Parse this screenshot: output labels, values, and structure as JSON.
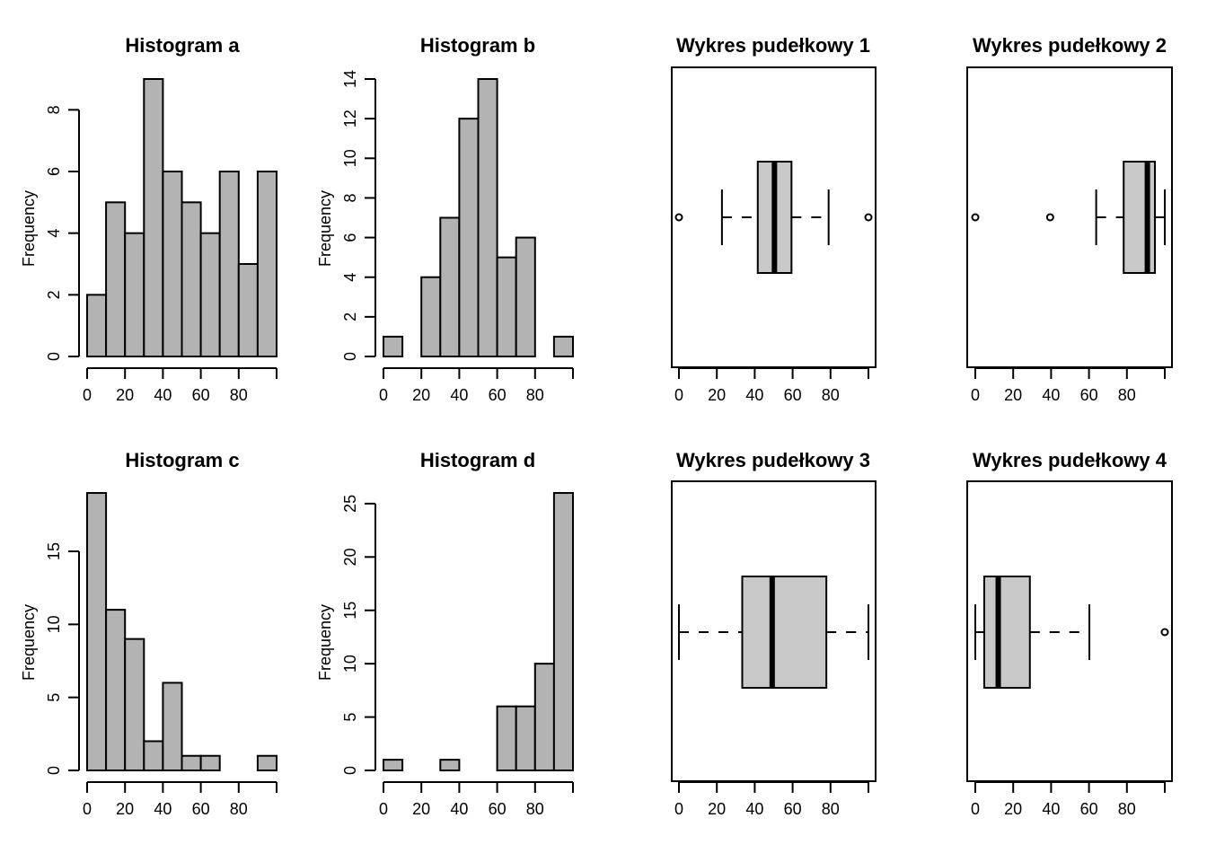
{
  "chart_data": [
    {
      "type": "bar",
      "subtype": "histogram",
      "title": "Histogram a",
      "xlabel": "",
      "ylabel": "Frequency",
      "bin_edges": [
        0,
        10,
        20,
        30,
        40,
        50,
        60,
        70,
        80,
        90,
        100
      ],
      "values": [
        2,
        5,
        4,
        9,
        6,
        5,
        4,
        6,
        3,
        6
      ],
      "xticks": [
        0,
        20,
        40,
        60,
        80,
        100
      ],
      "xtick_labels": [
        "0",
        "20",
        "40",
        "60",
        "80",
        ""
      ],
      "yticks": [
        0,
        2,
        4,
        6,
        8
      ],
      "ytick_labels": [
        "0",
        "2",
        "4",
        "6",
        "8"
      ],
      "xlim": [
        0,
        100
      ],
      "ylim": [
        0,
        9
      ],
      "bar_color": "#B3B3B3"
    },
    {
      "type": "bar",
      "subtype": "histogram",
      "title": "Histogram b",
      "xlabel": "",
      "ylabel": "Frequency",
      "bin_edges": [
        0,
        10,
        20,
        30,
        40,
        50,
        60,
        70,
        80,
        90,
        100
      ],
      "values": [
        1,
        0,
        4,
        7,
        12,
        14,
        5,
        6,
        0,
        1
      ],
      "xticks": [
        0,
        20,
        40,
        60,
        80,
        100
      ],
      "xtick_labels": [
        "0",
        "20",
        "40",
        "60",
        "80",
        ""
      ],
      "yticks": [
        0,
        2,
        4,
        6,
        8,
        10,
        12,
        14
      ],
      "ytick_labels": [
        "0",
        "2",
        "4",
        "6",
        "8",
        "10",
        "12",
        "14"
      ],
      "xlim": [
        0,
        100
      ],
      "ylim": [
        0,
        14
      ],
      "bar_color": "#B3B3B3"
    },
    {
      "type": "boxplot",
      "orientation": "horizontal",
      "title": "Wykres pudełkowy 1",
      "whisker_low": 22.7,
      "q1": 41.6,
      "median": 50.4,
      "q3": 59.4,
      "whisker_high": 79,
      "outliers": [
        0,
        100
      ],
      "xticks": [
        0,
        20,
        40,
        60,
        80,
        100
      ],
      "xtick_labels": [
        "0",
        "20",
        "40",
        "60",
        "80",
        ""
      ],
      "xlim": [
        -4,
        104
      ],
      "box_color": "#C8C8C8"
    },
    {
      "type": "boxplot",
      "orientation": "horizontal",
      "title": "Wykres pudełkowy 2",
      "whisker_low": 63.8,
      "q1": 78.3,
      "median": 90.8,
      "q3": 94.8,
      "whisker_high": 100,
      "outliers": [
        0,
        39.5
      ],
      "xticks": [
        0,
        20,
        40,
        60,
        80,
        100
      ],
      "xtick_labels": [
        "0",
        "20",
        "40",
        "60",
        "80",
        ""
      ],
      "xlim": [
        -4,
        104
      ],
      "box_color": "#C8C8C8"
    },
    {
      "type": "bar",
      "subtype": "histogram",
      "title": "Histogram c",
      "xlabel": "",
      "ylabel": "Frequency",
      "bin_edges": [
        0,
        10,
        20,
        30,
        40,
        50,
        60,
        70,
        80,
        90,
        100
      ],
      "values": [
        19,
        11,
        9,
        2,
        6,
        1,
        1,
        0,
        0,
        1
      ],
      "xticks": [
        0,
        20,
        40,
        60,
        80,
        100
      ],
      "xtick_labels": [
        "0",
        "20",
        "40",
        "60",
        "80",
        ""
      ],
      "yticks": [
        0,
        5,
        10,
        15
      ],
      "ytick_labels": [
        "0",
        "5",
        "10",
        "15"
      ],
      "xlim": [
        0,
        100
      ],
      "ylim": [
        0,
        19
      ],
      "bar_color": "#B3B3B3"
    },
    {
      "type": "bar",
      "subtype": "histogram",
      "title": "Histogram d",
      "xlabel": "",
      "ylabel": "Frequency",
      "bin_edges": [
        0,
        10,
        20,
        30,
        40,
        50,
        60,
        70,
        80,
        90,
        100
      ],
      "values": [
        1,
        0,
        0,
        1,
        0,
        0,
        6,
        6,
        10,
        26
      ],
      "xticks": [
        0,
        20,
        40,
        60,
        80,
        100
      ],
      "xtick_labels": [
        "0",
        "20",
        "40",
        "60",
        "80",
        ""
      ],
      "yticks": [
        0,
        5,
        10,
        15,
        20,
        25
      ],
      "ytick_labels": [
        "0",
        "5",
        "10",
        "15",
        "20",
        "25"
      ],
      "xlim": [
        0,
        100
      ],
      "ylim": [
        0,
        26
      ],
      "bar_color": "#B3B3B3"
    },
    {
      "type": "boxplot",
      "orientation": "horizontal",
      "title": "Wykres pudełkowy 3",
      "whisker_low": 0,
      "q1": 33.4,
      "median": 49.2,
      "q3": 77.8,
      "whisker_high": 100,
      "outliers": [],
      "xticks": [
        0,
        20,
        40,
        60,
        80,
        100
      ],
      "xtick_labels": [
        "0",
        "20",
        "40",
        "60",
        "80",
        ""
      ],
      "xlim": [
        -4,
        104
      ],
      "box_color": "#C8C8C8"
    },
    {
      "type": "boxplot",
      "orientation": "horizontal",
      "title": "Wykres pudełkowy 4",
      "whisker_low": 0,
      "q1": 4.7,
      "median": 12.1,
      "q3": 28.8,
      "whisker_high": 60.2,
      "outliers": [
        100
      ],
      "xticks": [
        0,
        20,
        40,
        60,
        80,
        100
      ],
      "xtick_labels": [
        "0",
        "20",
        "40",
        "60",
        "80",
        ""
      ],
      "xlim": [
        -4,
        104
      ],
      "box_color": "#C8C8C8"
    }
  ]
}
